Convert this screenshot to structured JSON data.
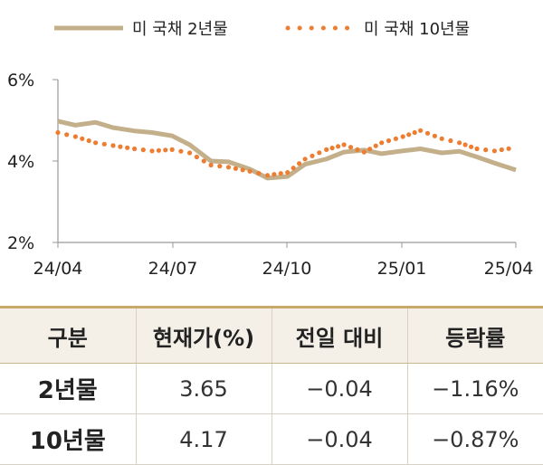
{
  "chart_data": {
    "type": "line",
    "ylim": [
      2,
      6
    ],
    "y_ticks": [
      "6%",
      "4%",
      "2%"
    ],
    "x_ticks": [
      "24/04",
      "24/07",
      "24/10",
      "25/01",
      "25/04"
    ],
    "grid": false,
    "legend_position": "top",
    "series": [
      {
        "name": "미 국채 2년물",
        "color": "#c3b08a",
        "style": "solid",
        "x": [
          "2024-04-01",
          "2024-04-15",
          "2024-05-01",
          "2024-05-15",
          "2024-06-01",
          "2024-06-15",
          "2024-07-01",
          "2024-07-15",
          "2024-08-01",
          "2024-08-15",
          "2024-09-01",
          "2024-09-15",
          "2024-10-01",
          "2024-10-15",
          "2024-11-01",
          "2024-11-15",
          "2024-12-01",
          "2024-12-15",
          "2025-01-01",
          "2025-01-15",
          "2025-02-01",
          "2025-02-15",
          "2025-03-01",
          "2025-03-15",
          "2025-04-01"
        ],
        "values": [
          4.98,
          4.88,
          4.95,
          4.82,
          4.74,
          4.7,
          4.62,
          4.4,
          4.0,
          3.98,
          3.8,
          3.58,
          3.62,
          3.92,
          4.05,
          4.22,
          4.27,
          4.18,
          4.25,
          4.3,
          4.2,
          4.24,
          4.1,
          3.95,
          3.78
        ]
      },
      {
        "name": "미 국채 10년물",
        "color": "#ed7d31",
        "style": "dotted",
        "x": [
          "2024-04-01",
          "2024-04-15",
          "2024-05-01",
          "2024-05-15",
          "2024-06-01",
          "2024-06-15",
          "2024-07-01",
          "2024-07-15",
          "2024-08-01",
          "2024-08-15",
          "2024-09-01",
          "2024-09-15",
          "2024-10-01",
          "2024-10-15",
          "2024-11-01",
          "2024-11-15",
          "2024-12-01",
          "2024-12-15",
          "2025-01-01",
          "2025-01-15",
          "2025-02-01",
          "2025-02-15",
          "2025-03-01",
          "2025-03-15",
          "2025-04-01"
        ],
        "values": [
          4.7,
          4.6,
          4.45,
          4.38,
          4.3,
          4.25,
          4.28,
          4.2,
          3.9,
          3.85,
          3.75,
          3.65,
          3.72,
          4.05,
          4.28,
          4.4,
          4.22,
          4.45,
          4.6,
          4.75,
          4.55,
          4.45,
          4.3,
          4.25,
          4.33
        ]
      }
    ]
  },
  "table": {
    "headers": [
      "구분",
      "현재가(%)",
      "전일 대비",
      "등락률"
    ],
    "rows": [
      [
        "2년물",
        "3.65",
        "−0.04",
        "−1.16%"
      ],
      [
        "10년물",
        "4.17",
        "−0.04",
        "−0.87%"
      ]
    ]
  }
}
